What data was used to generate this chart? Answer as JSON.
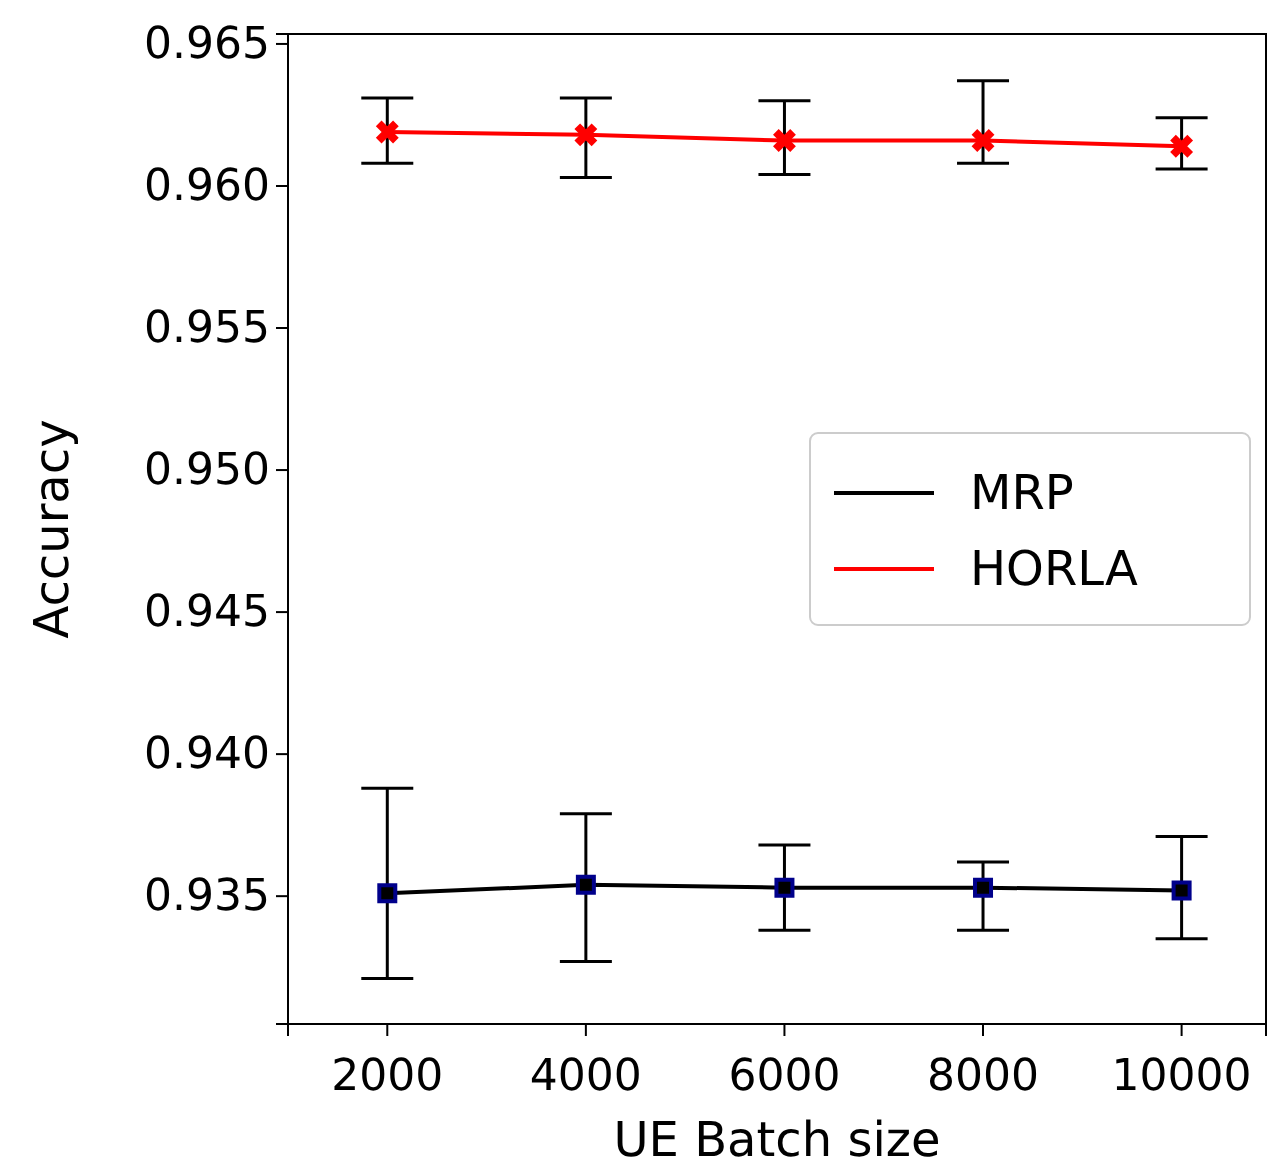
{
  "chart_data": {
    "type": "line",
    "xlabel": "UE Batch size",
    "ylabel": "Accuracy",
    "x": [
      2000,
      4000,
      6000,
      8000,
      10000
    ],
    "xlim": [
      1000,
      10850
    ],
    "xticks": [
      2000,
      4000,
      6000,
      8000,
      10000
    ],
    "ylim": [
      0.9305,
      0.96535
    ],
    "yticks": [
      {
        "value": 0.935,
        "label": "0.935"
      },
      {
        "value": 0.94,
        "label": "0.940"
      },
      {
        "value": 0.945,
        "label": "0.945"
      },
      {
        "value": 0.95,
        "label": "0.950"
      },
      {
        "value": 0.955,
        "label": "0.955"
      },
      {
        "value": 0.96,
        "label": "0.960"
      },
      {
        "value": 0.965,
        "label": "0.965"
      }
    ],
    "series": [
      {
        "name": "MRP",
        "color": "#000000",
        "marker": "square",
        "values": [
          0.9351,
          0.9354,
          0.9353,
          0.9353,
          0.9352
        ],
        "errors": [
          [
            0.9321,
            0.9388
          ],
          [
            0.9327,
            0.9379
          ],
          [
            0.9338,
            0.9368
          ],
          [
            0.9338,
            0.9362
          ],
          [
            0.9335,
            0.9371
          ]
        ]
      },
      {
        "name": "HORLA",
        "color": "#ff0000",
        "marker": "cross",
        "values": [
          0.9619,
          0.9618,
          0.9616,
          0.9616,
          0.9614
        ],
        "errors": [
          [
            0.9608,
            0.9631
          ],
          [
            0.9603,
            0.9631
          ],
          [
            0.9604,
            0.963
          ],
          [
            0.9608,
            0.9637
          ],
          [
            0.9606,
            0.9624
          ]
        ]
      }
    ],
    "legend": "center right",
    "grid": false
  }
}
